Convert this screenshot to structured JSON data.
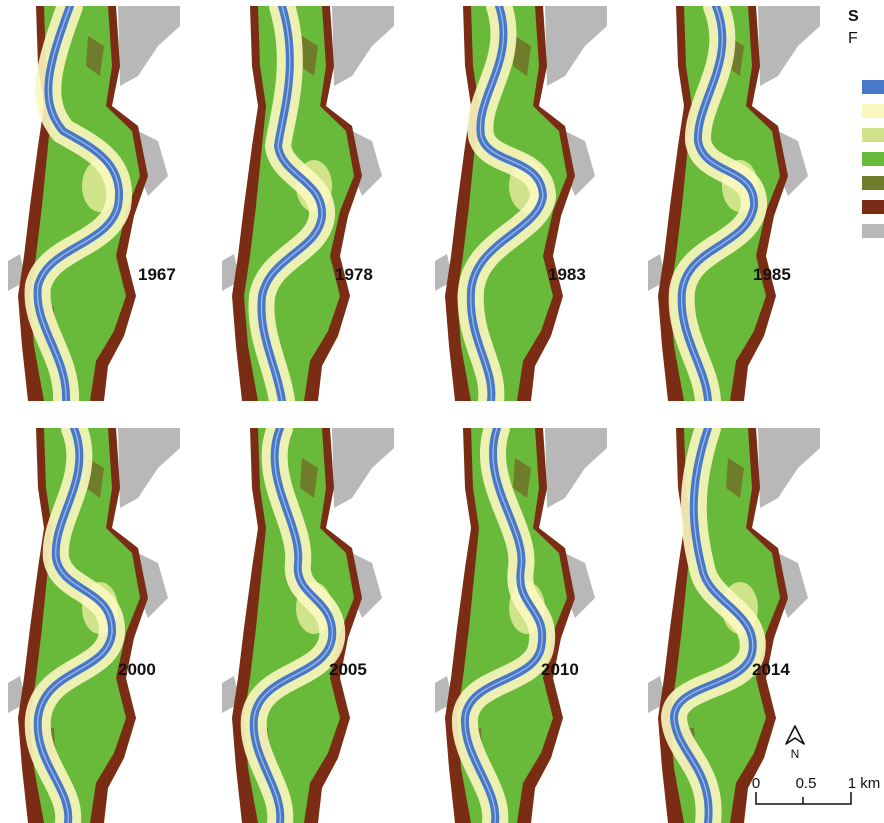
{
  "panels": [
    {
      "year": "1967"
    },
    {
      "year": "1978"
    },
    {
      "year": "1983"
    },
    {
      "year": "1985"
    },
    {
      "year": "2000"
    },
    {
      "year": "2005"
    },
    {
      "year": "2010"
    },
    {
      "year": "2014"
    }
  ],
  "legend": {
    "title": "S",
    "subtitle": "F",
    "swatches": [
      {
        "color": "#4a78c9"
      },
      {
        "color": "#fbf7c0"
      },
      {
        "color": "#cfe48a"
      },
      {
        "color": "#69b93a"
      },
      {
        "color": "#6f7c2a"
      },
      {
        "color": "#7a2d14"
      },
      {
        "color": "#b8b8b8"
      }
    ]
  },
  "north_arrow": {
    "label": "N"
  },
  "scale_bar": {
    "tick_0": "0",
    "tick_1": "0.5",
    "tick_2": "1 km"
  },
  "colors": {
    "water": "#4a78c9",
    "sand": "#fbf7c0",
    "light_veg": "#cfe48a",
    "forest": "#69b93a",
    "olive": "#6f7c2a",
    "brown": "#7a2d14",
    "urban": "#b8b8b8"
  }
}
